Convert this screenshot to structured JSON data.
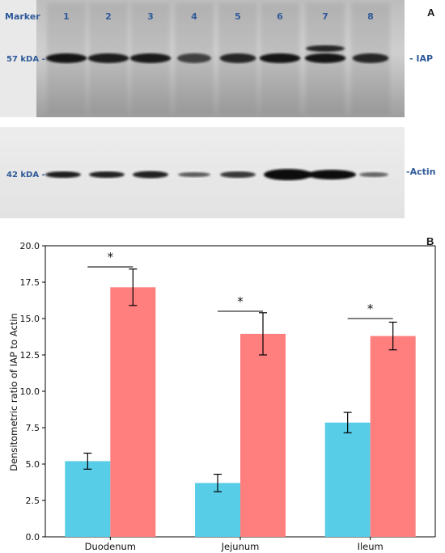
{
  "panel_a": {
    "letter": "A",
    "header": "Marker",
    "lanes": [
      "1",
      "2",
      "3",
      "4",
      "5",
      "6",
      "7",
      "8"
    ],
    "top_blot": {
      "marker_label": "57 kDA -",
      "band_label": "- IAP"
    },
    "bottom_blot": {
      "marker_label": "42 kDA -",
      "band_label": "-Actin"
    },
    "colors": {
      "text": "#2f5a9a",
      "band": "#111111"
    }
  },
  "panel_b": {
    "letter": "B"
  },
  "chart_data": {
    "type": "bar",
    "categories": [
      "Duodenum",
      "Jejunum",
      "Ileum"
    ],
    "series": [
      {
        "values": [
          5.2,
          3.7,
          7.85
        ],
        "errors": [
          0.55,
          0.6,
          0.7
        ],
        "color": "#57cde8"
      },
      {
        "values": [
          17.15,
          13.95,
          13.8
        ],
        "errors": [
          1.25,
          1.45,
          0.95
        ],
        "color": "#ff7f7f"
      }
    ],
    "title": "",
    "xlabel": "",
    "ylabel": "Densitometric ratio of IAP to Actin",
    "ylim": [
      0,
      20
    ],
    "yticks": [
      "0.0",
      "2.5",
      "5.0",
      "7.5",
      "10.0",
      "12.5",
      "15.0",
      "17.5",
      "20.0"
    ],
    "annotations": [
      {
        "category": "Duodenum",
        "text": "*",
        "level": 18.55
      },
      {
        "category": "Jejunum",
        "text": "*",
        "level": 15.5
      },
      {
        "category": "Ileum",
        "text": "*",
        "level": 15.0
      }
    ],
    "grid": false,
    "legend": "none"
  }
}
